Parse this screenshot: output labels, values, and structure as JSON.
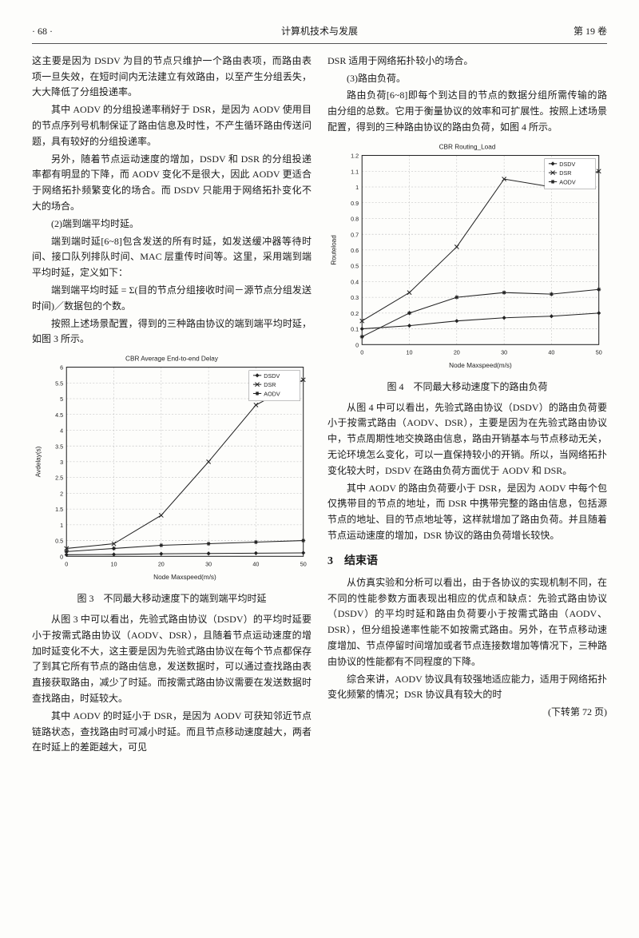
{
  "header": {
    "page_num": "· 68 ·",
    "journal": "计算机技术与发展",
    "volume": "第 19 卷"
  },
  "left": {
    "p1": "这主要是因为 DSDV 为目的节点只维护一个路由表项，而路由表项一旦失效，在短时间内无法建立有效路由，以至产生分组丢失，大大降低了分组投递率。",
    "p2": "其中 AODV 的分组投递率稍好于 DSR，是因为 AODV 使用目的节点序列号机制保证了路由信息及时性，不产生循环路由传送问题，具有较好的分组投递率。",
    "p3": "另外，随着节点运动速度的增加，DSDV 和 DSR 的分组投递率都有明显的下降，而 AODV 变化不是很大，因此 AODV 更适合于网络拓扑频繁变化的场合。而 DSDV 只能用于网络拓扑变化不大的场合。",
    "item2": "(2)端到端平均时延。",
    "p4": "端到端时延[6~8]包含发送的所有时延，如发送缓冲器等待时间、接口队列排队时间、MAC 层重传时间等。这里，采用端到端平均时延，定义如下：",
    "p5": "端到端平均时延 = Σ(目的节点分组接收时间－源节点分组发送时间)／数据包的个数。",
    "p6": "按照上述场景配置，得到的三种路由协议的端到端平均时延，如图 3 所示。",
    "chart3_caption": "图 3　不同最大移动速度下的端到端平均时延",
    "p7": "从图 3 中可以看出，先验式路由协议（DSDV）的平均时延要小于按需式路由协议（AODV、DSR），且随着节点运动速度的增加时延变化不大，这主要是因为先验式路由协议在每个节点都保存了到其它所有节点的路由信息，发送数据时，可以通过查找路由表直接获取路由，减少了时延。而按需式路由协议需要在发送数据时查找路由，时延较大。",
    "p8": "其中 AODV 的时延小于 DSR，是因为 AODV 可获知邻近节点链路状态，查找路由时可减小时延。而且节点移动速度越大，两者在时延上的差距越大，可见"
  },
  "right": {
    "p1": "DSR 适用于网络拓扑较小的场合。",
    "item3": "(3)路由负荷。",
    "p2": "路由负荷[6~8]即每个到达目的节点的数据分组所需传输的路由分组的总数。它用于衡量协议的效率和可扩展性。按照上述场景配置，得到的三种路由协议的路由负荷，如图 4 所示。",
    "chart4_caption": "图 4　不同最大移动速度下的路由负荷",
    "p3": "从图 4 中可以看出，先验式路由协议（DSDV）的路由负荷要小于按需式路由（AODV、DSR），主要是因为在先验式路由协议中，节点周期性地交换路由信息，路由开销基本与节点移动无关，无论环境怎么变化，可以一直保持较小的开销。所以，当网络拓扑变化较大时，DSDV 在路由负荷方面优于 AODV 和 DSR。",
    "p4": "其中 AODV 的路由负荷要小于 DSR，是因为 AODV 中每个包仅携带目的节点的地址，而 DSR 中携带完整的路由信息，包括源节点的地址、目的节点地址等，这样就增加了路由负荷。并且随着节点运动速度的增加，DSR 协议的路由负荷增长较快。",
    "section3": "3　结束语",
    "p5": "从仿真实验和分析可以看出，由于各协议的实现机制不同，在不同的性能参数方面表现出相应的优点和缺点：先验式路由协议（DSDV）的平均时延和路由负荷要小于按需式路由（AODV、DSR），但分组投递率性能不如按需式路由。另外，在节点移动速度增加、节点停留时间增加或者节点连接数增加等情况下，三种路由协议的性能都有不同程度的下降。",
    "p6": "综合来讲，AODV 协议具有较强地适应能力，适用于网络拓扑变化频繁的情况；DSR 协议具有较大的时",
    "cont": "(下转第 72 页)"
  },
  "chart3": {
    "type": "line",
    "title": "CBR Average End-to-end Delay",
    "xlabel": "Node Maxspeed(m/s)",
    "ylabel": "Avdelay(s)",
    "x": [
      0,
      10,
      20,
      30,
      40,
      50
    ],
    "ylim": [
      0,
      6
    ],
    "ytick_step": 0.5,
    "grid_color": "#bcbcbc",
    "background": "#fdfdfb",
    "axis_color": "#222",
    "series": [
      {
        "name": "DSDV",
        "marker": "path",
        "color": "#222",
        "y": [
          0.05,
          0.06,
          0.08,
          0.09,
          0.1,
          0.11
        ]
      },
      {
        "name": "DSR",
        "marker": "x",
        "color": "#222",
        "y": [
          0.25,
          0.4,
          1.3,
          3.0,
          4.8,
          5.6
        ]
      },
      {
        "name": "AODV",
        "marker": "star",
        "color": "#222",
        "y": [
          0.15,
          0.25,
          0.35,
          0.4,
          0.45,
          0.5
        ]
      }
    ],
    "legend_pos": "top-right",
    "title_fontsize": 8,
    "label_fontsize": 8,
    "tick_fontsize": 7
  },
  "chart4": {
    "type": "line",
    "title": "CBR Routing_Load",
    "xlabel": "Node Maxspeed(m/s)",
    "ylabel": "Routeload",
    "x": [
      0,
      10,
      20,
      30,
      40,
      50
    ],
    "ylim": [
      0,
      1.2
    ],
    "ytick_step": 0.1,
    "grid_color": "#bcbcbc",
    "background": "#fdfdfb",
    "axis_color": "#222",
    "series": [
      {
        "name": "DSDV",
        "marker": "path",
        "color": "#222",
        "y": [
          0.1,
          0.12,
          0.15,
          0.17,
          0.18,
          0.2
        ]
      },
      {
        "name": "DSR",
        "marker": "x",
        "color": "#222",
        "y": [
          0.15,
          0.33,
          0.62,
          1.05,
          1.0,
          1.1
        ]
      },
      {
        "name": "AODV",
        "marker": "star",
        "color": "#222",
        "y": [
          0.05,
          0.2,
          0.3,
          0.33,
          0.32,
          0.35
        ]
      }
    ],
    "legend_pos": "top-right",
    "title_fontsize": 8,
    "label_fontsize": 8,
    "tick_fontsize": 7
  }
}
